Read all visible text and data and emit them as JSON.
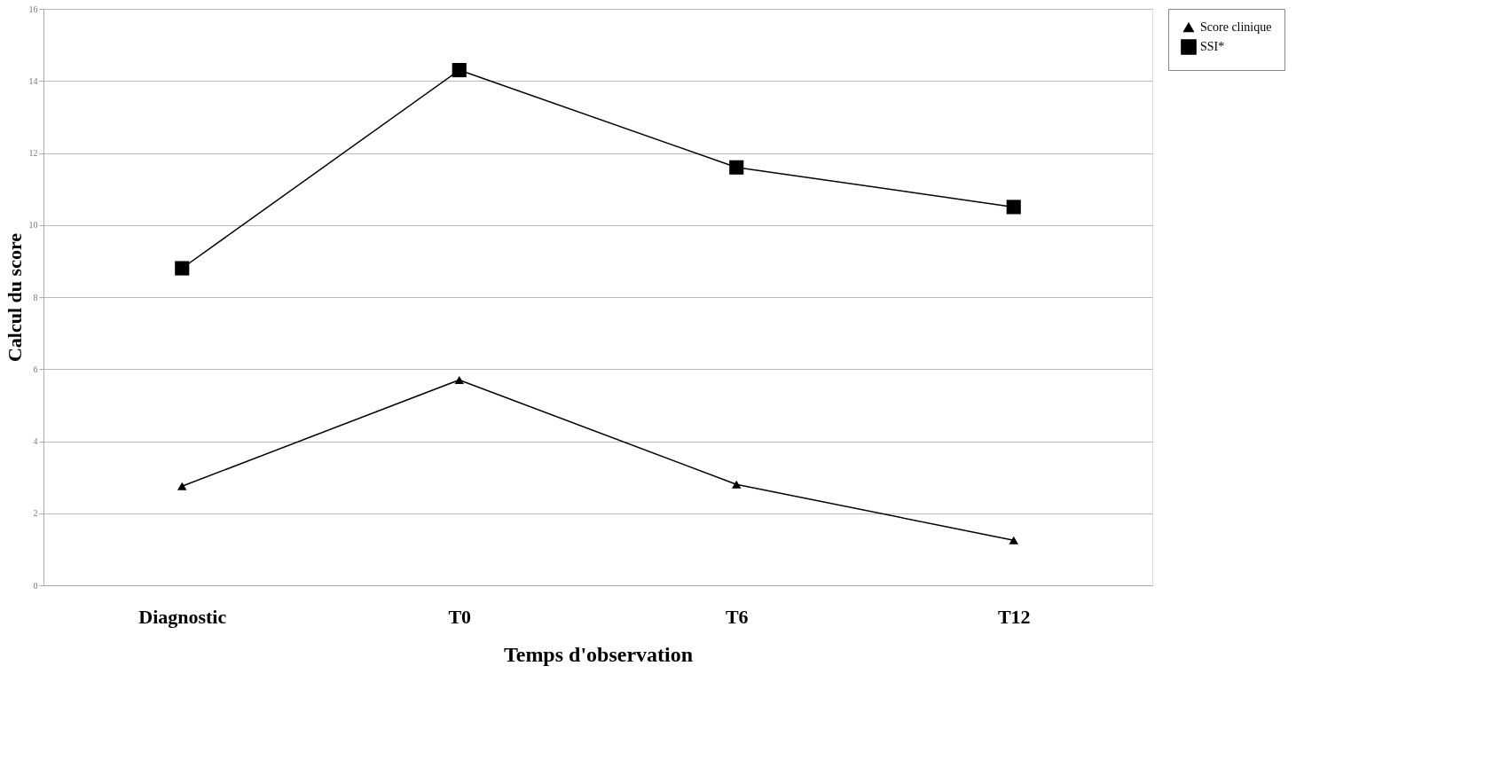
{
  "chart_data": {
    "type": "line",
    "xlabel": "Temps d'observation",
    "ylabel": "Calcul du score",
    "categories": [
      "Diagnostic",
      "T0",
      "T6",
      "T12"
    ],
    "series": [
      {
        "name": "Score clinique",
        "color": "#000000",
        "marker": "triangle",
        "values": [
          2.75,
          5.7,
          2.8,
          1.25
        ]
      },
      {
        "name": "SSI*",
        "color": "#000000",
        "marker": "square",
        "values": [
          8.8,
          14.3,
          11.6,
          10.5
        ]
      }
    ],
    "ylim": [
      0,
      16
    ],
    "yticks": [
      0,
      2,
      4,
      6,
      8,
      10,
      12,
      14,
      16
    ],
    "grid": "y",
    "legend": "right",
    "line_style": "solid"
  }
}
